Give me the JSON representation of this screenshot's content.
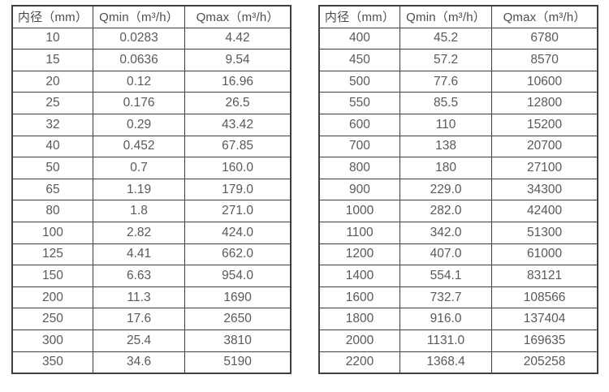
{
  "colors": {
    "background": "#ffffff",
    "border": "#3f3f3f",
    "cell_text": "#595959",
    "header_text": "#4d4d4d"
  },
  "tables": [
    {
      "name": "small-diameters",
      "headers": [
        "内径（mm）",
        "Qmin（m³/h）",
        "Qmax（m³/h）"
      ],
      "rows": [
        [
          "10",
          "0.0283",
          "4.42"
        ],
        [
          "15",
          "0.0636",
          "9.54"
        ],
        [
          "20",
          "0.12",
          "16.96"
        ],
        [
          "25",
          "0.176",
          "26.5"
        ],
        [
          "32",
          "0.29",
          "43.42"
        ],
        [
          "40",
          "0.452",
          "67.85"
        ],
        [
          "50",
          "0.7",
          "160.0"
        ],
        [
          "65",
          "1.19",
          "179.0"
        ],
        [
          "80",
          "1.8",
          "271.0"
        ],
        [
          "100",
          "2.82",
          "424.0"
        ],
        [
          "125",
          "4.41",
          "662.0"
        ],
        [
          "150",
          "6.63",
          "954.0"
        ],
        [
          "200",
          "11.3",
          "1690"
        ],
        [
          "250",
          "17.6",
          "2650"
        ],
        [
          "300",
          "25.4",
          "3810"
        ],
        [
          "350",
          "34.6",
          "5190"
        ]
      ]
    },
    {
      "name": "large-diameters",
      "headers": [
        "内径（mm）",
        "Qmin（m³/h）",
        "Qmax（m³/h）"
      ],
      "rows": [
        [
          "400",
          "45.2",
          "6780"
        ],
        [
          "450",
          "57.2",
          "8570"
        ],
        [
          "500",
          "77.6",
          "10600"
        ],
        [
          "550",
          "85.5",
          "12800"
        ],
        [
          "600",
          "110",
          "15200"
        ],
        [
          "700",
          "138",
          "20700"
        ],
        [
          "800",
          "180",
          "27100"
        ],
        [
          "900",
          "229.0",
          "34300"
        ],
        [
          "1000",
          "282.0",
          "42400"
        ],
        [
          "1100",
          "342.0",
          "51300"
        ],
        [
          "1200",
          "407.0",
          "61000"
        ],
        [
          "1400",
          "554.1",
          "83121"
        ],
        [
          "1600",
          "732.7",
          "108566"
        ],
        [
          "1800",
          "916.0",
          "137404"
        ],
        [
          "2000",
          "1131.0",
          "169635"
        ],
        [
          "2200",
          "1368.4",
          "205258"
        ]
      ]
    }
  ]
}
